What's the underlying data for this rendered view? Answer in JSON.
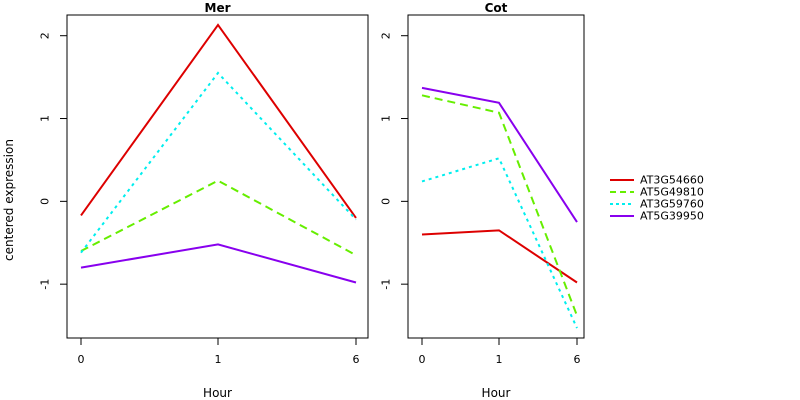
{
  "chart_data": [
    {
      "type": "line",
      "title": "Mer",
      "xlabel": "Hour",
      "ylabel": "centered expression",
      "categories": [
        "0",
        "1",
        "6"
      ],
      "ylim": [
        -1.65,
        2.25
      ],
      "yticks": [
        "-1",
        "0",
        "1",
        "2"
      ],
      "series": [
        {
          "name": "AT3G54660",
          "values": [
            -0.17,
            2.13,
            -0.2
          ],
          "color": "#dd0000",
          "style": "solid"
        },
        {
          "name": "AT5G49810",
          "values": [
            -0.6,
            0.25,
            -0.65
          ],
          "color": "#66ee00",
          "style": "dashed"
        },
        {
          "name": "AT3G59760",
          "values": [
            -0.62,
            1.55,
            -0.22
          ],
          "color": "#00eeee",
          "style": "dotted"
        },
        {
          "name": "AT5G39950",
          "values": [
            -0.8,
            -0.52,
            -0.98
          ],
          "color": "#8800ee",
          "style": "solid"
        }
      ]
    },
    {
      "type": "line",
      "title": "Cot",
      "xlabel": "Hour",
      "ylabel": "",
      "categories": [
        "0",
        "1",
        "6"
      ],
      "ylim": [
        -1.65,
        2.25
      ],
      "yticks": [
        "-1",
        "0",
        "1",
        "2"
      ],
      "series": [
        {
          "name": "AT3G54660",
          "values": [
            -0.4,
            -0.35,
            -0.98
          ],
          "color": "#dd0000",
          "style": "solid"
        },
        {
          "name": "AT5G49810",
          "values": [
            1.28,
            1.07,
            -1.38
          ],
          "color": "#66ee00",
          "style": "dashed"
        },
        {
          "name": "AT3G59760",
          "values": [
            0.24,
            0.52,
            -1.53
          ],
          "color": "#00eeee",
          "style": "dotted"
        },
        {
          "name": "AT5G39950",
          "values": [
            1.37,
            1.19,
            -0.25
          ],
          "color": "#8800ee",
          "style": "solid"
        }
      ]
    }
  ],
  "legend": {
    "position": "right",
    "items": [
      "AT3G54660",
      "AT5G49810",
      "AT3G59760",
      "AT5G39950"
    ]
  }
}
